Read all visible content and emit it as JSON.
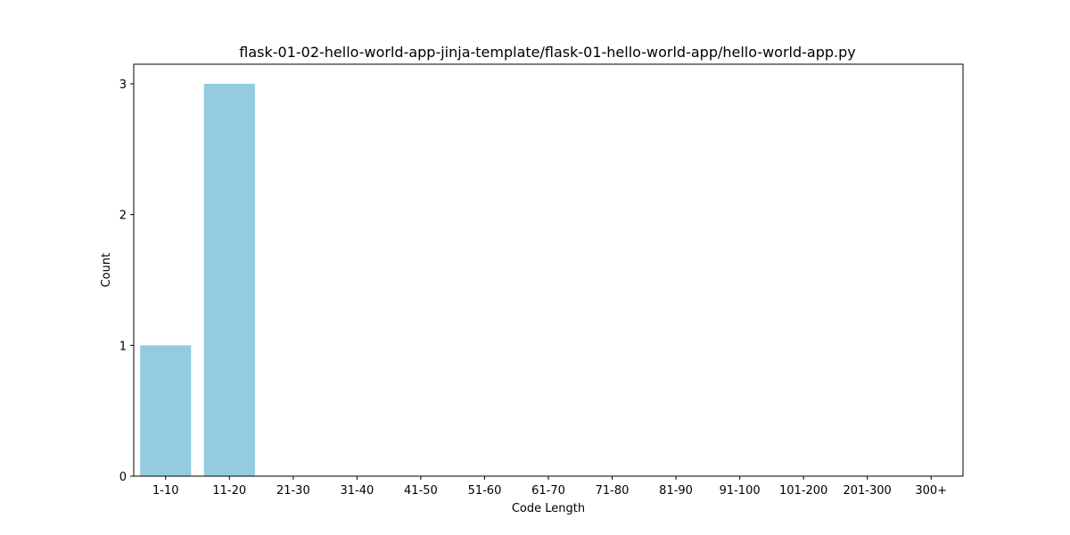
{
  "chart_data": {
    "type": "bar",
    "title": "flask-01-02-hello-world-app-jinja-template/flask-01-hello-world-app/hello-world-app.py",
    "xlabel": "Code Length",
    "ylabel": "Count",
    "categories": [
      "1-10",
      "11-20",
      "21-30",
      "31-40",
      "41-50",
      "51-60",
      "61-70",
      "71-80",
      "81-90",
      "91-100",
      "101-200",
      "201-300",
      "300+"
    ],
    "values": [
      1,
      3,
      0,
      0,
      0,
      0,
      0,
      0,
      0,
      0,
      0,
      0,
      0
    ],
    "yticks": [
      0,
      1,
      2,
      3
    ],
    "ylim": [
      0,
      3.15
    ],
    "grid": false,
    "legend": "none",
    "colors": {
      "bar": "#94cbe0",
      "axis": "#000000",
      "background": "#ffffff"
    }
  }
}
